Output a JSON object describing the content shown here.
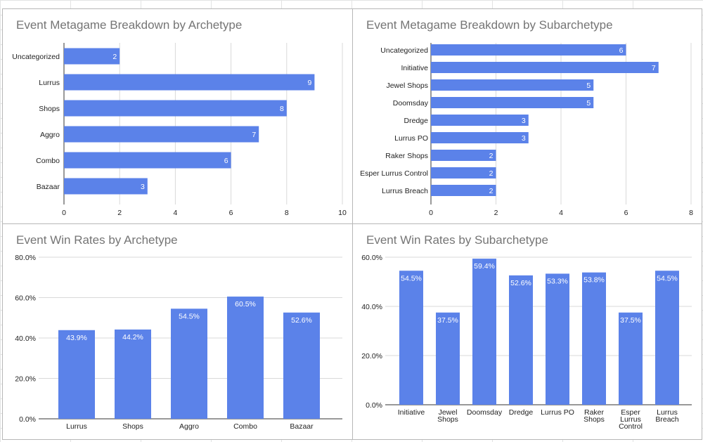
{
  "colors": {
    "bar": "#5b82e9",
    "title": "#757575",
    "label": "#222222",
    "axis": "#333333",
    "grid": "#d9d9d9",
    "panel_border": "#b7b7b7"
  },
  "chart_data": [
    {
      "type": "bar",
      "orientation": "horizontal",
      "title": "Event Metagame Breakdown by Archetype",
      "categories": [
        "Uncategorized",
        "Lurrus",
        "Shops",
        "Aggro",
        "Combo",
        "Bazaar"
      ],
      "values": [
        2,
        9,
        8,
        7,
        6,
        3
      ],
      "data_labels": [
        "2",
        "9",
        "8",
        "7",
        "6",
        "3"
      ],
      "xlim": [
        0,
        10
      ],
      "ticks": [
        0,
        2,
        4,
        6,
        8,
        10
      ],
      "tick_labels": [
        "0",
        "2",
        "4",
        "6",
        "8",
        "10"
      ],
      "grid": true,
      "xlabel": "",
      "ylabel": ""
    },
    {
      "type": "bar",
      "orientation": "horizontal",
      "title": "Event Metagame Breakdown by Subarchetype",
      "categories": [
        "Uncategorized",
        "Initiative",
        "Jewel Shops",
        "Doomsday",
        "Dredge",
        "Lurrus PO",
        "Raker Shops",
        "Esper Lurrus Control",
        "Lurrus Breach"
      ],
      "values": [
        6,
        7,
        5,
        5,
        3,
        3,
        2,
        2,
        2
      ],
      "data_labels": [
        "6",
        "7",
        "5",
        "5",
        "3",
        "3",
        "2",
        "2",
        "2"
      ],
      "xlim": [
        0,
        8
      ],
      "ticks": [
        0,
        2,
        4,
        6,
        8
      ],
      "tick_labels": [
        "0",
        "2",
        "4",
        "6",
        "8"
      ],
      "grid": true,
      "xlabel": "",
      "ylabel": ""
    },
    {
      "type": "bar",
      "orientation": "vertical",
      "title": "Event Win Rates by Archetype",
      "categories": [
        "Lurrus",
        "Shops",
        "Aggro",
        "Combo",
        "Bazaar"
      ],
      "values": [
        43.9,
        44.2,
        54.5,
        60.5,
        52.6
      ],
      "data_labels": [
        "43.9%",
        "44.2%",
        "54.5%",
        "60.5%",
        "52.6%"
      ],
      "ylim": [
        0,
        80
      ],
      "ticks": [
        0,
        20,
        40,
        60,
        80
      ],
      "tick_labels": [
        "0.0%",
        "20.0%",
        "40.0%",
        "60.0%",
        "80.0%"
      ],
      "grid": true,
      "xlabel": "",
      "ylabel": ""
    },
    {
      "type": "bar",
      "orientation": "vertical",
      "title": "Event Win Rates by Subarchetype",
      "categories": [
        "Initiative",
        "Jewel Shops",
        "Doomsday",
        "Dredge",
        "Lurrus PO",
        "Raker Shops",
        "Esper Lurrus Control",
        "Lurrus Breach"
      ],
      "category_lines": [
        [
          "Initiative"
        ],
        [
          "Jewel",
          "Shops"
        ],
        [
          "Doomsday"
        ],
        [
          "Dredge"
        ],
        [
          "Lurrus PO"
        ],
        [
          "Raker",
          "Shops"
        ],
        [
          "Esper",
          "Lurrus",
          "Control"
        ],
        [
          "Lurrus",
          "Breach"
        ]
      ],
      "values": [
        54.5,
        37.5,
        59.4,
        52.6,
        53.3,
        53.8,
        37.5,
        54.5
      ],
      "data_labels": [
        "54.5%",
        "37.5%",
        "59.4%",
        "52.6%",
        "53.3%",
        "53.8%",
        "37.5%",
        "54.5%"
      ],
      "ylim": [
        0,
        60
      ],
      "ticks": [
        0,
        20,
        40,
        60
      ],
      "tick_labels": [
        "0.0%",
        "20.0%",
        "40.0%",
        "60.0%"
      ],
      "grid": true,
      "xlabel": "",
      "ylabel": ""
    }
  ]
}
